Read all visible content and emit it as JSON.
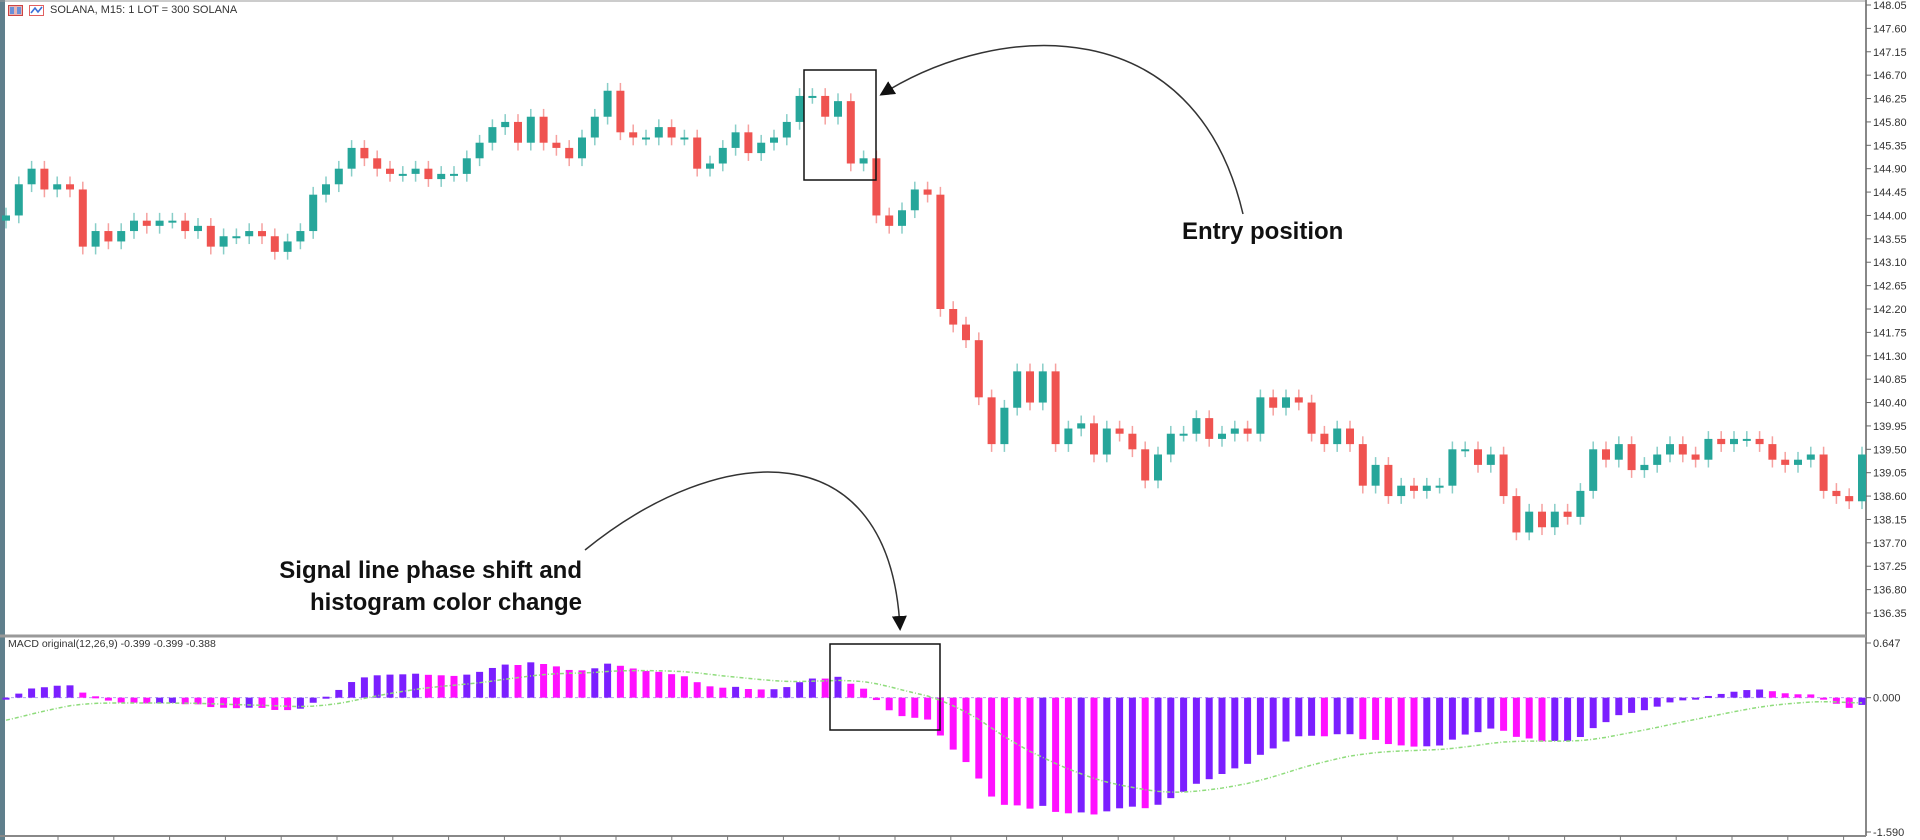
{
  "header": {
    "symbol_info": "SOLANA, M15:  1 LOT = 300 SOLANA",
    "icons": [
      "chart-grid-icon",
      "chart-type-icon"
    ]
  },
  "macd_pane": {
    "label": "MACD original(12,26,9) -0.399 -0.399 -0.388"
  },
  "annotations": {
    "entry": "Entry position",
    "signal_line1": "Signal line phase shift and",
    "signal_line2": "histogram color change"
  },
  "colors": {
    "bull": "#26a69a",
    "bear": "#ef5350",
    "hist_up": "#7b1fff",
    "hist_down": "#ff10ff",
    "signal": "#8fdc7c"
  },
  "chart_data": [
    {
      "type": "candlestick",
      "title": "SOLANA, M15",
      "y_ticks": [
        "148.05",
        "147.60",
        "147.15",
        "146.70",
        "146.25",
        "145.80",
        "145.35",
        "144.90",
        "144.45",
        "144.00",
        "143.55",
        "143.10",
        "142.65",
        "142.20",
        "141.75",
        "141.30",
        "140.85",
        "140.40",
        "139.95",
        "139.50",
        "139.05",
        "138.60",
        "138.15",
        "137.70",
        "137.25",
        "136.80",
        "136.35"
      ],
      "ylim": [
        136.35,
        148.05
      ],
      "close": [
        144.0,
        144.6,
        144.9,
        144.5,
        144.6,
        144.5,
        143.4,
        143.7,
        143.5,
        143.7,
        143.9,
        143.8,
        143.9,
        143.9,
        143.7,
        143.8,
        143.4,
        143.6,
        143.6,
        143.7,
        143.6,
        143.3,
        143.5,
        143.7,
        144.4,
        144.6,
        144.9,
        145.3,
        145.1,
        144.9,
        144.8,
        144.8,
        144.9,
        144.7,
        144.8,
        144.8,
        145.1,
        145.4,
        145.7,
        145.8,
        145.4,
        145.9,
        145.4,
        145.3,
        145.1,
        145.5,
        145.9,
        146.4,
        145.6,
        145.5,
        145.5,
        145.7,
        145.5,
        145.5,
        144.9,
        145.0,
        145.3,
        145.6,
        145.2,
        145.4,
        145.5,
        145.8,
        146.3,
        146.3,
        145.9,
        146.2,
        145.0,
        145.1,
        144.0,
        143.8,
        144.1,
        144.5,
        144.4,
        142.2,
        141.9,
        141.6,
        140.5,
        139.6,
        140.3,
        141.0,
        140.4,
        141.0,
        139.6,
        139.9,
        140.0,
        139.4,
        139.9,
        139.8,
        139.5,
        138.9,
        139.4,
        139.8,
        139.8,
        140.1,
        139.7,
        139.8,
        139.9,
        139.8,
        140.5,
        140.3,
        140.5,
        140.4,
        139.8,
        139.6,
        139.9,
        139.6,
        138.8,
        139.2,
        138.6,
        138.8,
        138.7,
        138.8,
        138.8,
        139.5,
        139.5,
        139.2,
        139.4,
        138.6,
        137.9,
        138.3,
        138.0,
        138.3,
        138.2,
        138.7,
        139.5,
        139.3,
        139.6,
        139.1,
        139.2,
        139.4,
        139.6,
        139.4,
        139.3,
        139.7,
        139.6,
        139.7,
        139.7,
        139.6,
        139.3,
        139.2,
        139.3,
        139.4,
        138.7,
        138.6,
        138.5,
        139.4
      ]
    },
    {
      "type": "bar",
      "title": "MACD original(12,26,9)",
      "params": {
        "fast": 12,
        "slow": 26,
        "signal": 9
      },
      "y_ticks": [
        "0.647",
        "0.000",
        "-1.590"
      ],
      "ylim": [
        -1.59,
        0.647
      ]
    }
  ]
}
